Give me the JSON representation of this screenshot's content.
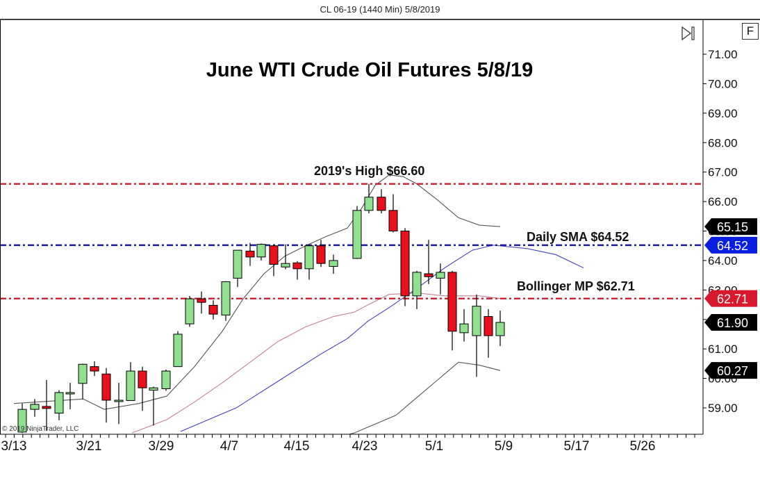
{
  "window": {
    "title": "CL 06-19 (1440 Min)  5/8/2019"
  },
  "toolbar": {
    "f_button_label": "F",
    "scroll_to_end_icon": "skip-to-end-icon"
  },
  "copyright": "© 2019 NinjaTrader, LLC",
  "colors": {
    "up_candle": "#90e090",
    "down_candle": "#e8101a",
    "candle_outline": "#000000",
    "high_line": "#cc1d2e",
    "sma_line": "#1a1aa0",
    "bollinger_line": "#cc1d2e",
    "upper_lower_band": "#555555",
    "mid_band": "#c08090",
    "sma_curve": "#4040c0",
    "tag_black": "#000000",
    "tag_blue": "#0a1ee0",
    "tag_red": "#d8182c"
  },
  "chart_data": {
    "type": "candlestick",
    "title": "June WTI Crude Oil Futures 5/8/19",
    "instrument": "CL 06-19 (1440 Min)",
    "xlabel": "",
    "ylabel": "",
    "ylim": [
      58.15,
      71.9
    ],
    "grid": false,
    "y_ticks": [
      "71.00",
      "70.00",
      "69.00",
      "68.00",
      "67.00",
      "66.00",
      "65.00",
      "64.00",
      "63.00",
      "62.00",
      "61.00",
      "60.00",
      "59.00"
    ],
    "x_tick_labels": [
      "3/13",
      "3/21",
      "3/29",
      "4/7",
      "4/15",
      "4/23",
      "5/1",
      "5/9",
      "5/17",
      "5/26"
    ],
    "annotations": [
      {
        "text": "2019's High $66.60",
        "price": 66.6,
        "style": "red dash-dot"
      },
      {
        "text": "Daily SMA $64.52",
        "price": 64.52,
        "style": "blue dash-dot"
      },
      {
        "text": "Bollinger MP $62.71",
        "price": 62.71,
        "style": "red dash-dot"
      }
    ],
    "price_tags": [
      {
        "value": "65.15",
        "color": "black"
      },
      {
        "value": "64.52",
        "color": "blue"
      },
      {
        "value": "62.71",
        "color": "red"
      },
      {
        "value": "61.90",
        "color": "black"
      },
      {
        "value": "60.27",
        "color": "black"
      }
    ],
    "candles": [
      {
        "date": "3/13",
        "open": 58.18,
        "high": 59.15,
        "low": 58.15,
        "close": 58.95
      },
      {
        "date": "3/14",
        "open": 58.95,
        "high": 59.3,
        "low": 58.7,
        "close": 59.12
      },
      {
        "date": "3/15",
        "open": 59.05,
        "high": 59.95,
        "low": 58.22,
        "close": 58.98
      },
      {
        "date": "3/18",
        "open": 58.82,
        "high": 59.6,
        "low": 58.58,
        "close": 59.52
      },
      {
        "date": "3/19",
        "open": 59.52,
        "high": 59.85,
        "low": 58.95,
        "close": 59.52
      },
      {
        "date": "3/20",
        "open": 59.83,
        "high": 60.5,
        "low": 59.3,
        "close": 60.48
      },
      {
        "date": "3/21",
        "open": 60.4,
        "high": 60.58,
        "low": 60.08,
        "close": 60.25
      },
      {
        "date": "3/22",
        "open": 60.15,
        "high": 60.35,
        "low": 58.5,
        "close": 59.26
      },
      {
        "date": "3/25",
        "open": 59.26,
        "high": 59.85,
        "low": 58.45,
        "close": 59.26
      },
      {
        "date": "3/26",
        "open": 59.25,
        "high": 60.55,
        "low": 59.25,
        "close": 60.25
      },
      {
        "date": "3/27",
        "open": 60.25,
        "high": 60.4,
        "low": 58.9,
        "close": 59.68
      },
      {
        "date": "3/28",
        "open": 59.6,
        "high": 59.72,
        "low": 58.4,
        "close": 59.68
      },
      {
        "date": "3/29",
        "open": 59.65,
        "high": 60.3,
        "low": 59.58,
        "close": 60.25
      },
      {
        "date": "4/1",
        "open": 60.4,
        "high": 61.6,
        "low": 60.4,
        "close": 61.5
      },
      {
        "date": "4/2",
        "open": 61.85,
        "high": 62.8,
        "low": 61.75,
        "close": 62.7
      },
      {
        "date": "4/3",
        "open": 62.7,
        "high": 62.95,
        "low": 62.2,
        "close": 62.58
      },
      {
        "date": "4/4",
        "open": 62.48,
        "high": 62.65,
        "low": 62.0,
        "close": 62.18
      },
      {
        "date": "4/5",
        "open": 62.15,
        "high": 63.3,
        "low": 61.95,
        "close": 63.28
      },
      {
        "date": "4/8",
        "open": 63.4,
        "high": 64.35,
        "low": 63.1,
        "close": 64.35
      },
      {
        "date": "4/9",
        "open": 64.32,
        "high": 64.6,
        "low": 63.82,
        "close": 64.12
      },
      {
        "date": "4/10",
        "open": 64.12,
        "high": 64.58,
        "low": 64.0,
        "close": 64.55
      },
      {
        "date": "4/11",
        "open": 64.5,
        "high": 64.55,
        "low": 63.47,
        "close": 63.87
      },
      {
        "date": "4/12",
        "open": 63.78,
        "high": 64.55,
        "low": 63.7,
        "close": 63.9
      },
      {
        "date": "4/15",
        "open": 63.92,
        "high": 63.98,
        "low": 63.35,
        "close": 63.72
      },
      {
        "date": "4/16",
        "open": 63.72,
        "high": 64.55,
        "low": 63.35,
        "close": 64.5
      },
      {
        "date": "4/17",
        "open": 64.5,
        "high": 64.7,
        "low": 63.78,
        "close": 63.9
      },
      {
        "date": "4/18",
        "open": 63.8,
        "high": 64.2,
        "low": 63.55,
        "close": 64.0
      },
      {
        "date": "4/22",
        "open": 64.07,
        "high": 65.85,
        "low": 64.05,
        "close": 65.7
      },
      {
        "date": "4/23",
        "open": 65.7,
        "high": 66.6,
        "low": 65.6,
        "close": 66.15
      },
      {
        "date": "4/24",
        "open": 66.15,
        "high": 66.42,
        "low": 65.6,
        "close": 65.7
      },
      {
        "date": "4/25",
        "open": 65.7,
        "high": 66.25,
        "low": 64.95,
        "close": 65.0
      },
      {
        "date": "4/26",
        "open": 65.0,
        "high": 65.1,
        "low": 62.45,
        "close": 62.8
      },
      {
        "date": "4/29",
        "open": 62.8,
        "high": 63.65,
        "low": 62.35,
        "close": 63.6
      },
      {
        "date": "4/30",
        "open": 63.55,
        "high": 64.7,
        "low": 63.2,
        "close": 63.45
      },
      {
        "date": "5/1",
        "open": 63.4,
        "high": 63.9,
        "low": 62.85,
        "close": 63.6
      },
      {
        "date": "5/2",
        "open": 63.6,
        "high": 63.65,
        "low": 60.95,
        "close": 61.6
      },
      {
        "date": "5/3",
        "open": 61.55,
        "high": 62.35,
        "low": 61.25,
        "close": 61.85
      },
      {
        "date": "5/6",
        "open": 61.45,
        "high": 62.85,
        "low": 60.05,
        "close": 62.45
      },
      {
        "date": "5/7",
        "open": 62.1,
        "high": 62.35,
        "low": 60.7,
        "close": 61.45
      },
      {
        "date": "5/8",
        "open": 61.45,
        "high": 62.3,
        "low": 61.1,
        "close": 61.9
      }
    ],
    "indicators": {
      "upper_band": [
        [
          20,
          59.15
        ],
        [
          120,
          59.3
        ],
        [
          150,
          58.95
        ],
        [
          200,
          59.15
        ],
        [
          240,
          59.4
        ],
        [
          280,
          60.4
        ],
        [
          320,
          61.6
        ],
        [
          350,
          62.7
        ],
        [
          380,
          63.55
        ],
        [
          410,
          64.15
        ],
        [
          440,
          64.5
        ],
        [
          470,
          64.82
        ],
        [
          500,
          65.1
        ],
        [
          520,
          65.75
        ],
        [
          540,
          66.55
        ],
        [
          560,
          66.9
        ],
        [
          580,
          66.85
        ],
        [
          600,
          66.6
        ],
        [
          630,
          66.05
        ],
        [
          660,
          65.45
        ],
        [
          690,
          65.2
        ],
        [
          720,
          65.15
        ]
      ],
      "mid_band": [
        [
          190,
          58.15
        ],
        [
          240,
          58.6
        ],
        [
          280,
          59.2
        ],
        [
          320,
          59.85
        ],
        [
          360,
          60.55
        ],
        [
          400,
          61.25
        ],
        [
          440,
          61.75
        ],
        [
          480,
          62.1
        ],
        [
          510,
          62.25
        ],
        [
          530,
          62.5
        ],
        [
          560,
          62.85
        ],
        [
          600,
          62.9
        ],
        [
          640,
          62.8
        ],
        [
          690,
          62.8
        ],
        [
          720,
          62.71
        ]
      ],
      "lower_band": [
        [
          470,
          57.9
        ],
        [
          510,
          58.15
        ],
        [
          540,
          58.45
        ],
        [
          570,
          58.75
        ],
        [
          600,
          59.35
        ],
        [
          630,
          59.95
        ],
        [
          660,
          60.55
        ],
        [
          690,
          60.45
        ],
        [
          720,
          60.27
        ]
      ],
      "sma": [
        [
          260,
          58.2
        ],
        [
          300,
          58.6
        ],
        [
          340,
          59.0
        ],
        [
          380,
          59.6
        ],
        [
          420,
          60.2
        ],
        [
          460,
          60.8
        ],
        [
          500,
          61.35
        ],
        [
          530,
          61.95
        ],
        [
          560,
          62.4
        ],
        [
          600,
          63.05
        ],
        [
          640,
          63.75
        ],
        [
          680,
          64.35
        ],
        [
          710,
          64.52
        ],
        [
          760,
          64.4
        ],
        [
          800,
          64.2
        ],
        [
          840,
          63.75
        ]
      ]
    }
  }
}
